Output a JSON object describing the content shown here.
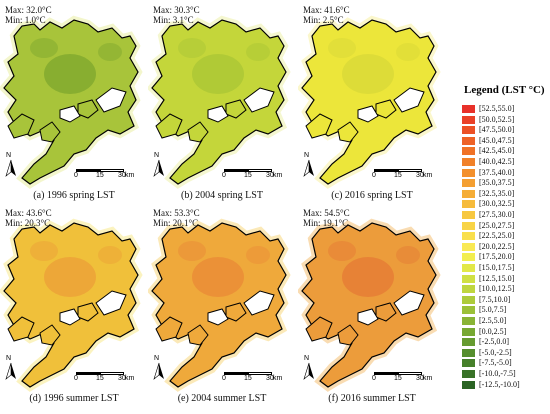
{
  "panels": [
    {
      "caption": "(a) 1996 spring LST",
      "max": "Max: 32.0°C",
      "min": "Min: 1.0°C",
      "fill": "#a8c43a",
      "dark": "#7da72e",
      "halo": "#f3f6cc"
    },
    {
      "caption": "(b) 2004 spring LST",
      "max": "Max: 30.3°C",
      "min": "Min: 3.1°C",
      "fill": "#c4d63a",
      "dark": "#a9c636",
      "halo": "#f5f7d0"
    },
    {
      "caption": "(c) 2016 spring LST",
      "max": "Max: 41.6°C",
      "min": "Min: 2.5°C",
      "fill": "#ece63a",
      "dark": "#d8d838",
      "halo": "#fbf7cc"
    },
    {
      "caption": "(d) 1996 summer LST",
      "max": "Max: 43.6°C",
      "min": "Min: 20.3°C",
      "fill": "#f0c03a",
      "dark": "#ec9f38",
      "halo": "#fbf3c0"
    },
    {
      "caption": "(e) 2004 summer LST",
      "max": "Max: 53.3°C",
      "min": "Min: 20.1°C",
      "fill": "#efa93b",
      "dark": "#ea8a37",
      "halo": "#fbe9b8"
    },
    {
      "caption": "(f) 2016 summer LST",
      "max": "Max: 54.5°C",
      "min": "Min: 19.1°C",
      "fill": "#ec9c3b",
      "dark": "#e57a36",
      "halo": "#f9dcb2"
    }
  ],
  "map_common": {
    "north_label": "N",
    "scale_ticks": [
      "0",
      "15",
      "30"
    ],
    "scale_unit": "km"
  },
  "legend": {
    "title": "Legend (LST °C)",
    "items": [
      {
        "label": "[52.5,55.0]",
        "color": "#e8312a"
      },
      {
        "label": "[50.0,52.5]",
        "color": "#ea4128"
      },
      {
        "label": "[47.5,50.0]",
        "color": "#ec5126"
      },
      {
        "label": "[45.0,47.5]",
        "color": "#ee6226"
      },
      {
        "label": "[42.5,45.0]",
        "color": "#f07226"
      },
      {
        "label": "[40.0,42.5]",
        "color": "#f18129"
      },
      {
        "label": "[37.5,40.0]",
        "color": "#f3902c"
      },
      {
        "label": "[35.0,37.5]",
        "color": "#f49f31"
      },
      {
        "label": "[32.5,35.0]",
        "color": "#f5ad36"
      },
      {
        "label": "[30.0,32.5]",
        "color": "#f6bb3b"
      },
      {
        "label": "[27.5,30.0]",
        "color": "#f7c840"
      },
      {
        "label": "[25.0,27.5]",
        "color": "#f8d446"
      },
      {
        "label": "[22.5,25.0]",
        "color": "#f9df4c"
      },
      {
        "label": "[20.0,22.5]",
        "color": "#f9e953"
      },
      {
        "label": "[17.5,20.0]",
        "color": "#f2ee4e"
      },
      {
        "label": "[15.0,17.5]",
        "color": "#e2e848"
      },
      {
        "label": "[12.5,15.0]",
        "color": "#d0e043"
      },
      {
        "label": "[10.0,12.5]",
        "color": "#bfd63f"
      },
      {
        "label": "[7.5,10.0]",
        "color": "#adcb3b"
      },
      {
        "label": "[5.0,7.5]",
        "color": "#9bc038"
      },
      {
        "label": "[2.5,5.0]",
        "color": "#89b435"
      },
      {
        "label": "[0.0,2.5]",
        "color": "#77a832"
      },
      {
        "label": "[-2.5,0.0]",
        "color": "#669b30"
      },
      {
        "label": "[-5.0,-2.5]",
        "color": "#558e2d"
      },
      {
        "label": "[-7.5,-5.0]",
        "color": "#46802a"
      },
      {
        "label": "[-10.0,-7.5]",
        "color": "#387227"
      },
      {
        "label": "[-12.5,-10.0]",
        "color": "#2b6424"
      }
    ]
  }
}
